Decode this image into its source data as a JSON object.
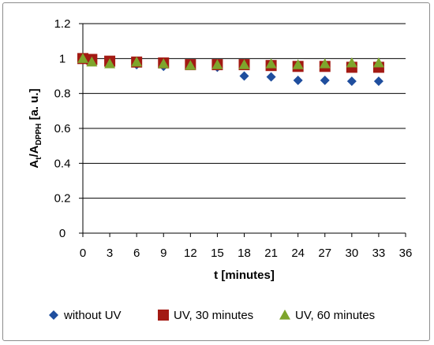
{
  "chart_data": {
    "type": "scatter",
    "title": "",
    "xlabel": "t [minutes]",
    "ylabel": {
      "main": "A",
      "sub_t": "t",
      "mid": "/A",
      "sub_dpph": "DPPH",
      "unit": " [a. u.]"
    },
    "xlim": [
      0,
      36
    ],
    "ylim": [
      0,
      1.2
    ],
    "xticks": [
      0,
      3,
      6,
      9,
      12,
      15,
      18,
      21,
      24,
      27,
      30,
      33,
      36
    ],
    "yticks": [
      "0",
      "0.2",
      "0.4",
      "0.6",
      "0.8",
      "1",
      "1.2"
    ],
    "grid": "horizontal",
    "legend_position": "bottom",
    "series": [
      {
        "name": "without UV",
        "marker": "diamond",
        "color": "#1f4e9e",
        "points": [
          [
            0,
            1.0
          ],
          [
            1,
            0.985
          ],
          [
            3,
            0.975
          ],
          [
            6,
            0.965
          ],
          [
            9,
            0.955
          ],
          [
            12,
            0.965
          ],
          [
            15,
            0.95
          ],
          [
            18,
            0.9
          ],
          [
            21,
            0.895
          ],
          [
            24,
            0.875
          ],
          [
            27,
            0.875
          ],
          [
            30,
            0.87
          ],
          [
            33,
            0.87
          ]
        ]
      },
      {
        "name": "UV, 30 minutes",
        "marker": "square",
        "color": "#a31a13",
        "points": [
          [
            0,
            1.0
          ],
          [
            1,
            0.995
          ],
          [
            3,
            0.985
          ],
          [
            6,
            0.98
          ],
          [
            9,
            0.975
          ],
          [
            12,
            0.965
          ],
          [
            15,
            0.965
          ],
          [
            18,
            0.965
          ],
          [
            21,
            0.96
          ],
          [
            24,
            0.955
          ],
          [
            27,
            0.955
          ],
          [
            30,
            0.95
          ],
          [
            33,
            0.95
          ]
        ]
      },
      {
        "name": "UV, 60 minutes",
        "marker": "triangle",
        "color": "#7ea52c",
        "points": [
          [
            0,
            1.0
          ],
          [
            1,
            0.98
          ],
          [
            3,
            0.97
          ],
          [
            6,
            0.98
          ],
          [
            9,
            0.97
          ],
          [
            12,
            0.96
          ],
          [
            15,
            0.965
          ],
          [
            18,
            0.965
          ],
          [
            21,
            0.97
          ],
          [
            24,
            0.965
          ],
          [
            27,
            0.97
          ],
          [
            30,
            0.975
          ],
          [
            33,
            0.975
          ]
        ]
      }
    ]
  },
  "colors": {
    "axis": "#000000",
    "gridline": "#000000",
    "frame_border": "#8c8c8c"
  }
}
